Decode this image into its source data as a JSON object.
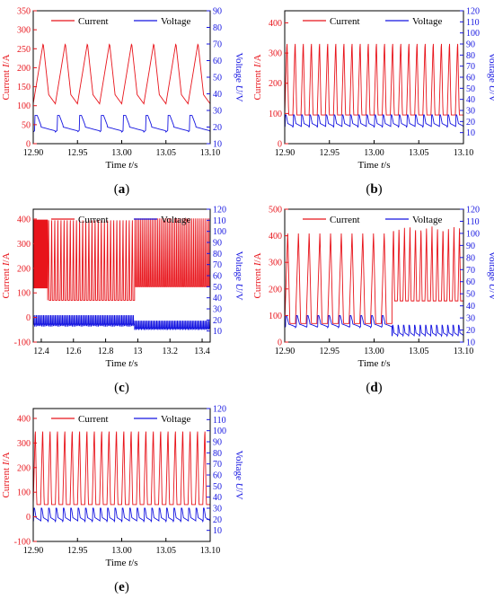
{
  "figure": {
    "panels": [
      {
        "caption": "(a)",
        "legend": {
          "current": "Current",
          "voltage": "Voltage"
        },
        "xlabel": {
          "pre": "Time ",
          "sym": "t",
          "post": "/s"
        },
        "ylabel_left": {
          "pre": "Current ",
          "sym": "I",
          "post": "/A"
        },
        "ylabel_right": {
          "pre": "Voltage ",
          "sym": "U",
          "post": "/V"
        },
        "x_ticks": [
          "12.90",
          "12.95",
          "13.00",
          "13.05",
          "13.10"
        ],
        "yl_ticks": [
          "0",
          "50",
          "100",
          "150",
          "200",
          "250",
          "300",
          "350"
        ],
        "yr_ticks": [
          "10",
          "20",
          "30",
          "40",
          "50",
          "60",
          "70",
          "80",
          "90"
        ]
      },
      {
        "caption": "(b)",
        "legend": {
          "current": "Current",
          "voltage": "Voltage"
        },
        "xlabel": {
          "pre": "Time ",
          "sym": "t",
          "post": "/s"
        },
        "ylabel_left": {
          "pre": "Current ",
          "sym": "I",
          "post": "/A"
        },
        "ylabel_right": {
          "pre": "Voltage ",
          "sym": "U",
          "post": "/V"
        },
        "x_ticks": [
          "12.90",
          "12.95",
          "13.00",
          "13.05",
          "13.10"
        ],
        "yl_ticks": [
          "0",
          "100",
          "200",
          "300",
          "400"
        ],
        "yr_ticks": [
          "10",
          "20",
          "30",
          "40",
          "50",
          "60",
          "70",
          "80",
          "90",
          "100",
          "110",
          "120"
        ]
      },
      {
        "caption": "(c)",
        "legend": {
          "current": "Current",
          "voltage": "Voltage"
        },
        "xlabel": {
          "pre": "Time  ",
          "sym": "t",
          "post": "/s"
        },
        "ylabel_left": {
          "pre": "Current ",
          "sym": "I",
          "post": "/A"
        },
        "ylabel_right": {
          "pre": "Voltage  ",
          "sym": "U",
          "post": "/V"
        },
        "x_ticks": [
          "12.4",
          "12.6",
          "12.8",
          "13",
          "13.2",
          "13.4"
        ],
        "yl_ticks": [
          "-100",
          "0",
          "100",
          "200",
          "300",
          "400"
        ],
        "yr_ticks": [
          "10",
          "20",
          "30",
          "40",
          "50",
          "60",
          "70",
          "80",
          "90",
          "100",
          "110",
          "120"
        ]
      },
      {
        "caption": "(d)",
        "legend": {
          "current": "Current",
          "voltage": "Voltage"
        },
        "xlabel": {
          "pre": "Time ",
          "sym": "t",
          "post": "/s"
        },
        "ylabel_left": {
          "pre": "Current ",
          "sym": "I",
          "post": "/A"
        },
        "ylabel_right": {
          "pre": "Voltage  ",
          "sym": "U",
          "post": "/V"
        },
        "x_ticks": [
          "12.90",
          "12.95",
          "13.00",
          "13.05",
          "13.10"
        ],
        "yl_ticks": [
          "0",
          "100",
          "200",
          "300",
          "400",
          "500"
        ],
        "yr_ticks": [
          "10",
          "20",
          "30",
          "40",
          "50",
          "60",
          "70",
          "80",
          "90",
          "100",
          "110",
          "120"
        ]
      },
      {
        "caption": "(e)",
        "legend": {
          "current": "Current",
          "voltage": "Voltage"
        },
        "xlabel": {
          "pre": "Time ",
          "sym": "t",
          "post": "/s"
        },
        "ylabel_left": {
          "pre": "Current ",
          "sym": "I",
          "post": "/A"
        },
        "ylabel_right": {
          "pre": "Voltage ",
          "sym": "U",
          "post": "/V"
        },
        "x_ticks": [
          "12.90",
          "12.95",
          "13.00",
          "13.05",
          "13.10"
        ],
        "yl_ticks": [
          "-100",
          "0",
          "100",
          "200",
          "300",
          "400"
        ],
        "yr_ticks": [
          "10",
          "20",
          "30",
          "40",
          "50",
          "60",
          "70",
          "80",
          "90",
          "100",
          "110",
          "120"
        ]
      }
    ]
  },
  "colors": {
    "current": "#e8141b",
    "voltage": "#1414e0",
    "axis": "#000000"
  },
  "chart_data": [
    {
      "type": "line",
      "panel": "(a)",
      "xlim": [
        12.9,
        13.1
      ],
      "ylim_left": [
        0,
        350
      ],
      "ylim_right": [
        10,
        90
      ],
      "grid": false,
      "legend_position": "top",
      "series": [
        {
          "name": "Current",
          "axis": "left",
          "segments": [
            {
              "x_range": [
                12.9,
                13.1
              ],
              "pulses": 8,
              "low": 105,
              "high": 265,
              "shape": "triangle"
            }
          ]
        },
        {
          "name": "Voltage",
          "axis": "right",
          "segments": [
            {
              "x_range": [
                12.9,
                13.1
              ],
              "pulses": 8,
              "low": 17,
              "high": 27,
              "shape": "pulse"
            }
          ]
        }
      ]
    },
    {
      "type": "line",
      "panel": "(b)",
      "xlim": [
        12.9,
        13.1
      ],
      "ylim_left": [
        0,
        440
      ],
      "ylim_right": [
        0,
        120
      ],
      "grid": false,
      "legend_position": "top",
      "series": [
        {
          "name": "Current",
          "axis": "left",
          "segments": [
            {
              "x_range": [
                12.9,
                13.1
              ],
              "pulses": 22,
              "low": 95,
              "high": 345,
              "shape": "spike"
            }
          ]
        },
        {
          "name": "Voltage",
          "axis": "right",
          "segments": [
            {
              "x_range": [
                12.9,
                13.1
              ],
              "pulses": 22,
              "low": 15,
              "high": 26,
              "shape": "pulse"
            }
          ]
        }
      ]
    },
    {
      "type": "line",
      "panel": "(c)",
      "xlim": [
        12.35,
        13.45
      ],
      "ylim_left": [
        -100,
        440
      ],
      "ylim_right": [
        0,
        120
      ],
      "grid": false,
      "legend_position": "top",
      "series": [
        {
          "name": "Current",
          "axis": "left",
          "segments": [
            {
              "x_range": [
                12.35,
                12.44
              ],
              "pulses": 40,
              "low": 120,
              "high": 415,
              "shape": "spike"
            },
            {
              "x_range": [
                12.44,
                12.98
              ],
              "pulses": 28,
              "low": 70,
              "high": 415,
              "shape": "spike"
            },
            {
              "x_range": [
                12.98,
                13.45
              ],
              "pulses": 40,
              "low": 125,
              "high": 420,
              "shape": "spike"
            }
          ]
        },
        {
          "name": "Voltage",
          "axis": "right",
          "segments": [
            {
              "x_range": [
                12.35,
                12.98
              ],
              "pulses": 70,
              "low": 14,
              "high": 24,
              "shape": "pulse"
            },
            {
              "x_range": [
                12.98,
                13.45
              ],
              "pulses": 55,
              "low": 11,
              "high": 19,
              "shape": "pulse"
            }
          ]
        }
      ]
    },
    {
      "type": "line",
      "panel": "(d)",
      "xlim": [
        12.9,
        13.1
      ],
      "ylim_left": [
        0,
        500
      ],
      "ylim_right": [
        10,
        120
      ],
      "grid": false,
      "legend_position": "top",
      "series": [
        {
          "name": "Current",
          "axis": "left",
          "segments": [
            {
              "x_range": [
                12.9,
                13.02
              ],
              "pulses": 10,
              "low": 70,
              "high": 415,
              "shape": "spike"
            },
            {
              "x_range": [
                13.02,
                13.1
              ],
              "pulses": 13,
              "low": 155,
              "high": 435,
              "shape": "spike"
            }
          ]
        },
        {
          "name": "Voltage",
          "axis": "right",
          "segments": [
            {
              "x_range": [
                12.9,
                13.02
              ],
              "pulses": 10,
              "low": 22,
              "high": 32,
              "shape": "pulse"
            },
            {
              "x_range": [
                13.02,
                13.1
              ],
              "pulses": 13,
              "low": 15,
              "high": 24,
              "shape": "pulse"
            }
          ]
        }
      ]
    },
    {
      "type": "line",
      "panel": "(e)",
      "xlim": [
        12.9,
        13.1
      ],
      "ylim_left": [
        -100,
        440
      ],
      "ylim_right": [
        0,
        120
      ],
      "grid": false,
      "legend_position": "top",
      "series": [
        {
          "name": "Current",
          "axis": "left",
          "segments": [
            {
              "x_range": [
                12.9,
                13.1
              ],
              "pulses": 24,
              "low": 50,
              "high": 365,
              "shape": "spike"
            }
          ]
        },
        {
          "name": "Voltage",
          "axis": "right",
          "segments": [
            {
              "x_range": [
                12.9,
                13.1
              ],
              "pulses": 24,
              "low": 18,
              "high": 30,
              "shape": "pulse"
            }
          ]
        }
      ]
    }
  ]
}
